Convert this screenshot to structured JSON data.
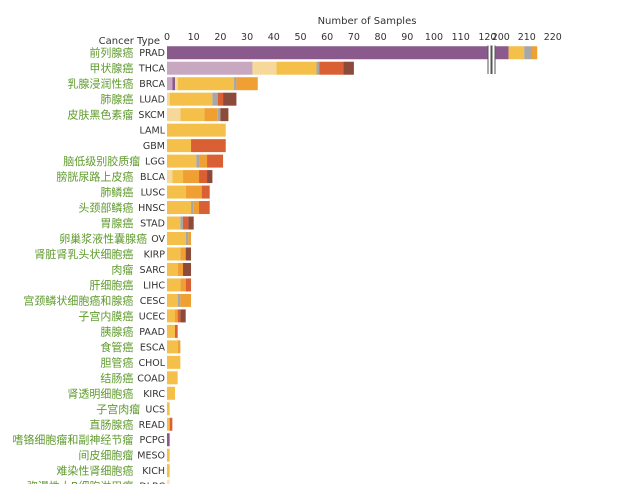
{
  "chart_data": {
    "type": "bar",
    "orientation": "horizontal",
    "stacked": true,
    "x_axis_title": "Number of Samples",
    "y_axis_title": "Cancer Type",
    "x_ticks": [
      0,
      10,
      20,
      30,
      40,
      50,
      60,
      70,
      80,
      90,
      100,
      110,
      120,
      200,
      210,
      220
    ],
    "axis_break": [
      122,
      197
    ],
    "xlim": [
      0,
      222
    ],
    "colors": [
      "#8b5a8c",
      "#c7a8c0",
      "#f6d99a",
      "#f4c04a",
      "#f3ad36",
      "#f0a033",
      "#a7a7a7",
      "#d95f35",
      "#8b4a3a",
      "#fce7b0"
    ],
    "categories": [
      {
        "abbr": "PRAD",
        "cn": "前列腺癌",
        "segments": [
          {
            "c": 0,
            "v": 203
          },
          {
            "c": 3,
            "v": 6
          },
          {
            "c": 6,
            "v": 3
          },
          {
            "c": 5,
            "v": 2
          }
        ]
      },
      {
        "abbr": "THCA",
        "cn": "甲状腺癌",
        "segments": [
          {
            "c": 1,
            "v": 32
          },
          {
            "c": 2,
            "v": 9
          },
          {
            "c": 3,
            "v": 15
          },
          {
            "c": 6,
            "v": 1
          },
          {
            "c": 7,
            "v": 9
          },
          {
            "c": 8,
            "v": 4
          }
        ]
      },
      {
        "abbr": "BRCA",
        "cn": "乳腺浸润性癌",
        "segments": [
          {
            "c": 1,
            "v": 2
          },
          {
            "c": 0,
            "v": 1
          },
          {
            "c": 2,
            "v": 1
          },
          {
            "c": 3,
            "v": 21
          },
          {
            "c": 6,
            "v": 1
          },
          {
            "c": 5,
            "v": 8
          }
        ]
      },
      {
        "abbr": "LUAD",
        "cn": "肺腺癌",
        "segments": [
          {
            "c": 2,
            "v": 1
          },
          {
            "c": 3,
            "v": 16
          },
          {
            "c": 6,
            "v": 2
          },
          {
            "c": 7,
            "v": 2
          },
          {
            "c": 8,
            "v": 5
          }
        ]
      },
      {
        "abbr": "SKCM",
        "cn": "皮肤黑色素瘤",
        "segments": [
          {
            "c": 2,
            "v": 5
          },
          {
            "c": 3,
            "v": 9
          },
          {
            "c": 5,
            "v": 5
          },
          {
            "c": 6,
            "v": 1
          },
          {
            "c": 8,
            "v": 3
          }
        ]
      },
      {
        "abbr": "LAML",
        "cn": "",
        "segments": [
          {
            "c": 3,
            "v": 22
          }
        ]
      },
      {
        "abbr": "GBM",
        "cn": "",
        "segments": [
          {
            "c": 3,
            "v": 9
          },
          {
            "c": 7,
            "v": 13
          }
        ]
      },
      {
        "abbr": "LGG",
        "cn": "脑低级别胶质瘤",
        "segments": [
          {
            "c": 3,
            "v": 11
          },
          {
            "c": 6,
            "v": 1
          },
          {
            "c": 5,
            "v": 3
          },
          {
            "c": 7,
            "v": 6
          }
        ]
      },
      {
        "abbr": "BLCA",
        "cn": "膀胱尿路上皮癌",
        "segments": [
          {
            "c": 2,
            "v": 2
          },
          {
            "c": 3,
            "v": 4
          },
          {
            "c": 5,
            "v": 6
          },
          {
            "c": 7,
            "v": 3
          },
          {
            "c": 8,
            "v": 2
          }
        ]
      },
      {
        "abbr": "LUSC",
        "cn": "肺鳞癌",
        "segments": [
          {
            "c": 3,
            "v": 7
          },
          {
            "c": 5,
            "v": 6
          },
          {
            "c": 7,
            "v": 3
          }
        ]
      },
      {
        "abbr": "HNSC",
        "cn": "头颈部鳞癌",
        "segments": [
          {
            "c": 3,
            "v": 9
          },
          {
            "c": 6,
            "v": 1
          },
          {
            "c": 5,
            "v": 2
          },
          {
            "c": 7,
            "v": 4
          }
        ]
      },
      {
        "abbr": "STAD",
        "cn": "胃腺癌",
        "segments": [
          {
            "c": 3,
            "v": 5
          },
          {
            "c": 6,
            "v": 1
          },
          {
            "c": 7,
            "v": 2
          },
          {
            "c": 8,
            "v": 2
          }
        ]
      },
      {
        "abbr": "OV",
        "cn": "卵巢浆液性囊腺癌",
        "segments": [
          {
            "c": 3,
            "v": 7
          },
          {
            "c": 6,
            "v": 1
          },
          {
            "c": 5,
            "v": 1
          }
        ]
      },
      {
        "abbr": "KIRP",
        "cn": "肾脏肾乳头状细胞癌",
        "segments": [
          {
            "c": 3,
            "v": 5
          },
          {
            "c": 5,
            "v": 2
          },
          {
            "c": 8,
            "v": 2
          }
        ]
      },
      {
        "abbr": "SARC",
        "cn": "肉瘤",
        "segments": [
          {
            "c": 3,
            "v": 4
          },
          {
            "c": 5,
            "v": 2
          },
          {
            "c": 8,
            "v": 3
          }
        ]
      },
      {
        "abbr": "LIHC",
        "cn": "肝细胞癌",
        "segments": [
          {
            "c": 3,
            "v": 5
          },
          {
            "c": 5,
            "v": 2
          },
          {
            "c": 7,
            "v": 2
          }
        ]
      },
      {
        "abbr": "CESC",
        "cn": "宫颈鳞状细胞癌和腺癌",
        "segments": [
          {
            "c": 3,
            "v": 4
          },
          {
            "c": 6,
            "v": 1
          },
          {
            "c": 5,
            "v": 4
          }
        ]
      },
      {
        "abbr": "UCEC",
        "cn": "子宫内膜癌",
        "segments": [
          {
            "c": 3,
            "v": 3
          },
          {
            "c": 5,
            "v": 1
          },
          {
            "c": 7,
            "v": 1
          },
          {
            "c": 8,
            "v": 2
          }
        ]
      },
      {
        "abbr": "PAAD",
        "cn": "胰腺癌",
        "segments": [
          {
            "c": 3,
            "v": 3
          },
          {
            "c": 7,
            "v": 1
          }
        ]
      },
      {
        "abbr": "ESCA",
        "cn": "食管癌",
        "segments": [
          {
            "c": 3,
            "v": 4
          },
          {
            "c": 5,
            "v": 1
          }
        ]
      },
      {
        "abbr": "CHOL",
        "cn": "胆管癌",
        "segments": [
          {
            "c": 3,
            "v": 5
          }
        ]
      },
      {
        "abbr": "COAD",
        "cn": "结肠癌",
        "segments": [
          {
            "c": 3,
            "v": 4
          }
        ]
      },
      {
        "abbr": "KIRC",
        "cn": "肾透明细胞癌",
        "segments": [
          {
            "c": 3,
            "v": 3
          }
        ]
      },
      {
        "abbr": "UCS",
        "cn": "子宫肉瘤",
        "segments": [
          {
            "c": 3,
            "v": 1
          }
        ]
      },
      {
        "abbr": "READ",
        "cn": "直肠腺癌",
        "segments": [
          {
            "c": 3,
            "v": 1
          },
          {
            "c": 7,
            "v": 1
          }
        ]
      },
      {
        "abbr": "PCPG",
        "cn": "嗜铬细胞瘤和副神经节瘤",
        "segments": [
          {
            "c": 0,
            "v": 1
          }
        ]
      },
      {
        "abbr": "MESO",
        "cn": "间皮细胞瘤",
        "segments": [
          {
            "c": 3,
            "v": 1
          }
        ]
      },
      {
        "abbr": "KICH",
        "cn": "难染性肾细胞癌",
        "segments": [
          {
            "c": 3,
            "v": 1
          }
        ]
      },
      {
        "abbr": "DLBC",
        "cn": "弥漫性大B细胞淋巴瘤",
        "segments": [
          {
            "c": 9,
            "v": 1
          }
        ]
      }
    ]
  }
}
